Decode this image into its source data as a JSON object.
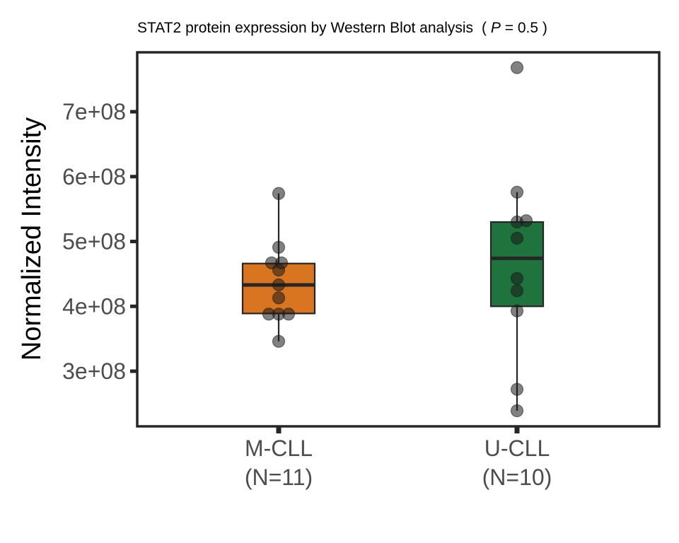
{
  "chart_data": {
    "type": "box",
    "title": "STAT2 protein expression by Western Blot analysis",
    "title_stat": {
      "open": "( ",
      "symbol": "P",
      "eq": " = 0.5 )"
    },
    "xlabel": "",
    "ylabel": "Normalized Intensity",
    "ylim": [
      215000000,
      791600000
    ],
    "yticks": [
      {
        "value": 300000000,
        "label": "3e+08"
      },
      {
        "value": 400000000,
        "label": "4e+08"
      },
      {
        "value": 500000000,
        "label": "5e+08"
      },
      {
        "value": 600000000,
        "label": "6e+08"
      },
      {
        "value": 700000000,
        "label": "7e+08"
      }
    ],
    "grid": false,
    "groups": [
      {
        "name": "M-CLL",
        "n_label": "(N=11)",
        "color": "#D97520",
        "box": {
          "q1": 389000000,
          "median": 433000000,
          "q3": 466000000,
          "whisker_low": 346000000,
          "whisker_high": 574000000
        },
        "points": [
          {
            "y": 574000000,
            "jitter": 0
          },
          {
            "y": 491000000,
            "jitter": 0
          },
          {
            "y": 467000000,
            "jitter": -10
          },
          {
            "y": 467000000,
            "jitter": 4
          },
          {
            "y": 456000000,
            "jitter": 0
          },
          {
            "y": 433000000,
            "jitter": 0
          },
          {
            "y": 413000000,
            "jitter": 0
          },
          {
            "y": 388000000,
            "jitter": -14
          },
          {
            "y": 388000000,
            "jitter": 0
          },
          {
            "y": 388000000,
            "jitter": 14
          },
          {
            "y": 346000000,
            "jitter": 0
          }
        ]
      },
      {
        "name": "U-CLL",
        "n_label": "(N=10)",
        "color": "#1E743C",
        "box": {
          "q1": 400000000,
          "median": 474000000,
          "q3": 530000000,
          "whisker_low": 239000000,
          "whisker_high": 576000000
        },
        "points": [
          {
            "y": 768000000,
            "jitter": 0
          },
          {
            "y": 576000000,
            "jitter": 0
          },
          {
            "y": 530000000,
            "jitter": 0
          },
          {
            "y": 532000000,
            "jitter": 13
          },
          {
            "y": 505000000,
            "jitter": 0
          },
          {
            "y": 443000000,
            "jitter": 0
          },
          {
            "y": 424000000,
            "jitter": 0
          },
          {
            "y": 393000000,
            "jitter": 0
          },
          {
            "y": 272000000,
            "jitter": 0
          },
          {
            "y": 239000000,
            "jitter": 0
          }
        ]
      }
    ]
  }
}
